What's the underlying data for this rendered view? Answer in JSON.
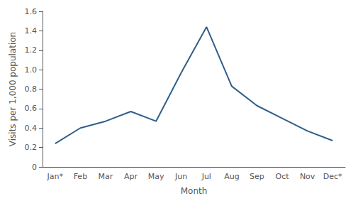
{
  "chart_data": {
    "type": "line",
    "xlabel": "Month",
    "ylabel": "Visits per 1,000 population",
    "categories": [
      "Jan*",
      "Feb",
      "Mar",
      "Apr",
      "May",
      "Jun",
      "Jul",
      "Aug",
      "Sep",
      "Oct",
      "Nov",
      "Dec*"
    ],
    "values": [
      0.24,
      0.4,
      0.47,
      0.57,
      0.47,
      0.97,
      1.44,
      0.83,
      0.63,
      0.5,
      0.37,
      0.27
    ],
    "color": "#2E5F8A",
    "ylim": [
      0,
      1.6
    ],
    "yticks": [
      0,
      0.2,
      0.4,
      0.6,
      0.8,
      {
        "value": 1.0,
        "label": "1.0"
      },
      1.2,
      1.4,
      1.6
    ],
    "grid": false
  }
}
